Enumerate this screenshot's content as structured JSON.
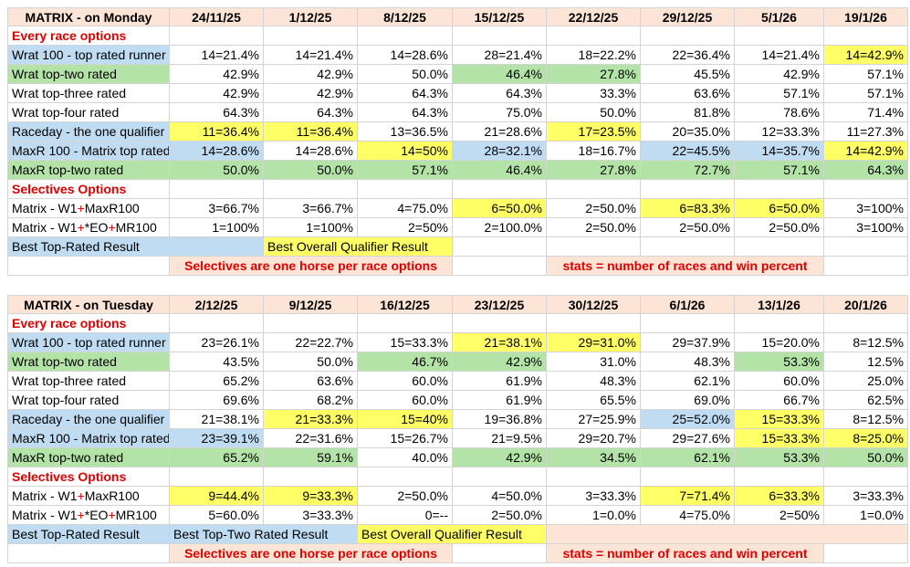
{
  "tables": [
    {
      "rows": [
        [
          {
            "text": "MATRIX - on Monday",
            "kind": "head",
            "fill": "#fce4d6"
          },
          {
            "text": "24/11/25",
            "kind": "head",
            "fill": "#fce4d6"
          },
          {
            "text": "1/12/25",
            "kind": "head",
            "fill": "#fce4d6"
          },
          {
            "text": "8/12/25",
            "kind": "head",
            "fill": "#fce4d6"
          },
          {
            "text": "15/12/25",
            "kind": "head",
            "fill": "#fce4d6"
          },
          {
            "text": "22/12/25",
            "kind": "head",
            "fill": "#fce4d6"
          },
          {
            "text": "29/12/25",
            "kind": "head",
            "fill": "#fce4d6"
          },
          {
            "text": "5/1/26",
            "kind": "head",
            "fill": "#fce4d6"
          },
          {
            "text": "19/1/26",
            "kind": "head",
            "fill": "#fce4d6"
          }
        ],
        [
          {
            "text": "Every race options",
            "kind": "section"
          }
        ],
        [
          {
            "text": "Wrat 100 - top rated runner",
            "fill": "#c0dcf2"
          },
          {
            "text": "14=21.4%"
          },
          {
            "text": "14=21.4%"
          },
          {
            "text": "14=28.6%"
          },
          {
            "text": "28=21.4%"
          },
          {
            "text": "18=22.2%"
          },
          {
            "text": "22=36.4%"
          },
          {
            "text": "14=21.4%"
          },
          {
            "text": "14=42.9%",
            "fill": "#ffff66"
          }
        ],
        [
          {
            "text": "Wrat top-two rated",
            "fill": "#b4e3a8"
          },
          {
            "text": "42.9%"
          },
          {
            "text": "42.9%"
          },
          {
            "text": "50.0%"
          },
          {
            "text": "46.4%",
            "fill": "#b4e3a8"
          },
          {
            "text": "27.8%",
            "fill": "#b4e3a8"
          },
          {
            "text": "45.5%"
          },
          {
            "text": "42.9%"
          },
          {
            "text": "57.1%"
          }
        ],
        [
          {
            "text": "Wrat top-three rated"
          },
          {
            "text": "42.9%"
          },
          {
            "text": "42.9%"
          },
          {
            "text": "64.3%"
          },
          {
            "text": "64.3%"
          },
          {
            "text": "33.3%"
          },
          {
            "text": "63.6%"
          },
          {
            "text": "57.1%"
          },
          {
            "text": "57.1%"
          }
        ],
        [
          {
            "text": "Wrat top-four rated"
          },
          {
            "text": "64.3%"
          },
          {
            "text": "64.3%"
          },
          {
            "text": "64.3%"
          },
          {
            "text": "75.0%"
          },
          {
            "text": "50.0%"
          },
          {
            "text": "81.8%"
          },
          {
            "text": "78.6%"
          },
          {
            "text": "71.4%"
          }
        ],
        [
          {
            "text": "Raceday - the one qualifier",
            "fill": "#c0dcf2"
          },
          {
            "text": "11=36.4%",
            "fill": "#ffff66"
          },
          {
            "text": "11=36.4%",
            "fill": "#ffff66"
          },
          {
            "text": "13=36.5%"
          },
          {
            "text": "21=28.6%"
          },
          {
            "text": "17=23.5%",
            "fill": "#ffff66"
          },
          {
            "text": "20=35.0%"
          },
          {
            "text": "12=33.3%"
          },
          {
            "text": "11=27.3%"
          }
        ],
        [
          {
            "text": "MaxR 100 - Matrix top rated",
            "fill": "#c0dcf2"
          },
          {
            "text": "14=28.6%",
            "fill": "#c0dcf2"
          },
          {
            "text": "14=28.6%"
          },
          {
            "text": "14=50%",
            "fill": "#ffff66"
          },
          {
            "text": "28=32.1%",
            "fill": "#c0dcf2"
          },
          {
            "text": "18=16.7%"
          },
          {
            "text": "22=45.5%",
            "fill": "#c0dcf2"
          },
          {
            "text": "14=35.7%",
            "fill": "#c0dcf2"
          },
          {
            "text": "14=42.9%",
            "fill": "#ffff66"
          }
        ],
        [
          {
            "text": "MaxR top-two rated",
            "fill": "#b4e3a8"
          },
          {
            "text": "50.0%",
            "fill": "#b4e3a8"
          },
          {
            "text": "50.0%",
            "fill": "#b4e3a8"
          },
          {
            "text": "57.1%",
            "fill": "#b4e3a8"
          },
          {
            "text": "46.4%",
            "fill": "#b4e3a8"
          },
          {
            "text": "27.8%",
            "fill": "#b4e3a8"
          },
          {
            "text": "72.7%",
            "fill": "#b4e3a8"
          },
          {
            "text": "57.1%",
            "fill": "#b4e3a8"
          },
          {
            "text": "64.3%",
            "fill": "#b4e3a8"
          }
        ],
        [
          {
            "text": "Selectives Options",
            "kind": "section"
          }
        ],
        [
          {
            "parts": [
              "Matrix - W1",
              "+",
              "MaxR100"
            ]
          },
          {
            "text": "3=66.7%"
          },
          {
            "text": "3=66.7%"
          },
          {
            "text": "4=75.0%"
          },
          {
            "text": "6=50.0%",
            "fill": "#ffff66"
          },
          {
            "text": "2=50.0%"
          },
          {
            "text": "6=83.3%",
            "fill": "#ffff66"
          },
          {
            "text": "6=50.0%",
            "fill": "#ffff66"
          },
          {
            "text": "3=100%"
          }
        ],
        [
          {
            "parts": [
              "Matrix - W1",
              "+",
              "*EO",
              "+",
              "MR100"
            ]
          },
          {
            "text": "1=100%"
          },
          {
            "text": "1=100%"
          },
          {
            "text": "2=50%"
          },
          {
            "text": "2=100.0%"
          },
          {
            "text": "2=50.0%"
          },
          {
            "text": "2=50.0%"
          },
          {
            "text": "2=50.0%"
          },
          {
            "text": "3=100%"
          }
        ],
        [
          {
            "text": "Best Top-Rated Result",
            "fill": "#c0dcf2"
          },
          {
            "fill": "#c0dcf2"
          },
          {
            "text": "Best Overall Qualifier Result",
            "fill": "#ffff66",
            "span": 2
          }
        ],
        [
          {},
          {
            "text": "Selectives are one horse per race options",
            "kind": "note",
            "fill": "#fce4d6",
            "span": 3
          },
          {},
          {
            "text": "stats = number of races and win percent",
            "kind": "note",
            "fill": "#fce4d6",
            "span": 3
          }
        ]
      ]
    },
    {
      "rows": [
        [
          {
            "text": "MATRIX - on Tuesday",
            "kind": "head",
            "fill": "#fce4d6"
          },
          {
            "text": "2/12/25",
            "kind": "head",
            "fill": "#fce4d6"
          },
          {
            "text": "9/12/25",
            "kind": "head",
            "fill": "#fce4d6"
          },
          {
            "text": "16/12/25",
            "kind": "head",
            "fill": "#fce4d6"
          },
          {
            "text": "23/12/25",
            "kind": "head",
            "fill": "#fce4d6"
          },
          {
            "text": "30/12/25",
            "kind": "head",
            "fill": "#fce4d6"
          },
          {
            "text": "6/1/26",
            "kind": "head",
            "fill": "#fce4d6"
          },
          {
            "text": "13/1/26",
            "kind": "head",
            "fill": "#fce4d6"
          },
          {
            "text": "20/1/26",
            "kind": "head",
            "fill": "#fce4d6"
          }
        ],
        [
          {
            "text": "Every race options",
            "kind": "section"
          }
        ],
        [
          {
            "text": "Wrat 100 - top rated runner",
            "fill": "#c0dcf2"
          },
          {
            "text": "23=26.1%"
          },
          {
            "text": "22=22.7%"
          },
          {
            "text": "15=33.3%"
          },
          {
            "text": "21=38.1%",
            "fill": "#ffff66"
          },
          {
            "text": "29=31.0%",
            "fill": "#ffff66"
          },
          {
            "text": "29=37.9%"
          },
          {
            "text": "15=20.0%"
          },
          {
            "text": "8=12.5%"
          }
        ],
        [
          {
            "text": "Wrat top-two rated",
            "fill": "#b4e3a8"
          },
          {
            "text": "43.5%"
          },
          {
            "text": "50.0%"
          },
          {
            "text": "46.7%",
            "fill": "#b4e3a8"
          },
          {
            "text": "42.9%",
            "fill": "#b4e3a8"
          },
          {
            "text": "31.0%"
          },
          {
            "text": "48.3%"
          },
          {
            "text": "53.3%",
            "fill": "#b4e3a8"
          },
          {
            "text": "12.5%"
          }
        ],
        [
          {
            "text": "Wrat top-three rated"
          },
          {
            "text": "65.2%"
          },
          {
            "text": "63.6%"
          },
          {
            "text": "60.0%"
          },
          {
            "text": "61.9%"
          },
          {
            "text": "48.3%"
          },
          {
            "text": "62.1%"
          },
          {
            "text": "60.0%"
          },
          {
            "text": "25.0%"
          }
        ],
        [
          {
            "text": "Wrat top-four rated"
          },
          {
            "text": "69.6%"
          },
          {
            "text": "68.2%"
          },
          {
            "text": "60.0%"
          },
          {
            "text": "61.9%"
          },
          {
            "text": "65.5%"
          },
          {
            "text": "69.0%"
          },
          {
            "text": "66.7%"
          },
          {
            "text": "62.5%"
          }
        ],
        [
          {
            "text": "Raceday - the one qualifier",
            "fill": "#c0dcf2"
          },
          {
            "text": "21=38.1%"
          },
          {
            "text": "21=33.3%",
            "fill": "#ffff66"
          },
          {
            "text": "15=40%",
            "fill": "#ffff66"
          },
          {
            "text": "19=36.8%"
          },
          {
            "text": "27=25.9%"
          },
          {
            "text": "25=52.0%",
            "fill": "#c0dcf2"
          },
          {
            "text": "15=33.3%",
            "fill": "#ffff66"
          },
          {
            "text": "8=12.5%"
          }
        ],
        [
          {
            "text": "MaxR 100 - Matrix top rated",
            "fill": "#c0dcf2"
          },
          {
            "text": "23=39.1%",
            "fill": "#c0dcf2"
          },
          {
            "text": "22=31.6%"
          },
          {
            "text": "15=26.7%"
          },
          {
            "text": "21=9.5%"
          },
          {
            "text": "29=20.7%"
          },
          {
            "text": "29=27.6%"
          },
          {
            "text": "15=33.3%",
            "fill": "#ffff66"
          },
          {
            "text": "8=25.0%",
            "fill": "#ffff66"
          }
        ],
        [
          {
            "text": "MaxR top-two rated",
            "fill": "#b4e3a8"
          },
          {
            "text": "65.2%",
            "fill": "#b4e3a8"
          },
          {
            "text": "59.1%",
            "fill": "#b4e3a8"
          },
          {
            "text": "40.0%"
          },
          {
            "text": "42.9%",
            "fill": "#b4e3a8"
          },
          {
            "text": "34.5%",
            "fill": "#b4e3a8"
          },
          {
            "text": "62.1%",
            "fill": "#b4e3a8"
          },
          {
            "text": "53.3%",
            "fill": "#b4e3a8"
          },
          {
            "text": "50.0%",
            "fill": "#b4e3a8"
          }
        ],
        [
          {
            "text": "Selectives Options",
            "kind": "section"
          }
        ],
        [
          {
            "parts": [
              "Matrix - W1",
              "+",
              "MaxR100"
            ]
          },
          {
            "text": "9=44.4%",
            "fill": "#ffff66"
          },
          {
            "text": "9=33.3%",
            "fill": "#ffff66"
          },
          {
            "text": "2=50.0%"
          },
          {
            "text": "4=50.0%"
          },
          {
            "text": "3=33.3%"
          },
          {
            "text": "7=71.4%",
            "fill": "#ffff66"
          },
          {
            "text": "6=33.3%",
            "fill": "#ffff66"
          },
          {
            "text": "3=33.3%"
          }
        ],
        [
          {
            "parts": [
              "Matrix - W1",
              "+",
              "*EO",
              "+",
              "MR100"
            ]
          },
          {
            "text": "5=60.0%"
          },
          {
            "text": "3=33.3%"
          },
          {
            "text": "0=--"
          },
          {
            "text": "2=50.0%"
          },
          {
            "text": "1=0.0%"
          },
          {
            "text": "4=75.0%"
          },
          {
            "text": "2=50%"
          },
          {
            "text": "1=0.0%"
          }
        ],
        [
          {
            "text": "Best Top-Rated Result",
            "fill": "#c0dcf2"
          },
          {
            "text": "Best Top-Two Rated Result",
            "fill": "#c0dcf2",
            "span": 2
          },
          {
            "text": "Best Overall Qualifier Result",
            "fill": "#ffff66",
            "span": 2
          },
          {
            "fill": "#fce4d6",
            "span": 4
          }
        ],
        [
          {},
          {
            "text": "Selectives are one horse per race options",
            "kind": "note",
            "fill": "#fce4d6",
            "span": 3
          },
          {},
          {
            "text": "stats = number of races and win percent",
            "kind": "note",
            "fill": "#fce4d6",
            "span": 3
          }
        ]
      ]
    }
  ]
}
